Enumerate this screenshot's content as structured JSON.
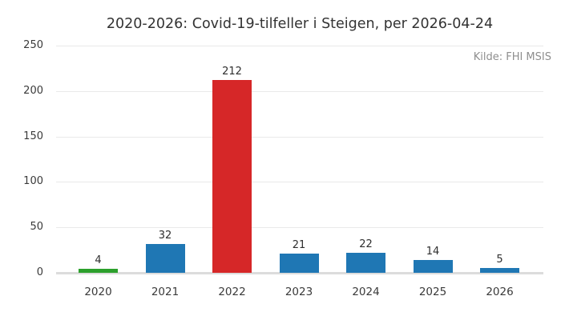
{
  "chart_data": {
    "type": "bar",
    "title": "2020-2026: Covid-19-tilfeller i Steigen, per 2026-04-24",
    "source": "Kilde: FHI MSIS",
    "categories": [
      "2020",
      "2021",
      "2022",
      "2023",
      "2024",
      "2025",
      "2026"
    ],
    "values": [
      4,
      32,
      212,
      21,
      22,
      14,
      5
    ],
    "bar_colors": [
      "#2ca02c",
      "#1f77b4",
      "#d62728",
      "#1f77b4",
      "#1f77b4",
      "#1f77b4",
      "#1f77b4"
    ],
    "value_labels": [
      "4",
      "32",
      "212",
      "21",
      "22",
      "14",
      "5"
    ],
    "xlabel": "",
    "ylabel": "",
    "yticks": [
      0,
      50,
      100,
      150,
      200,
      250
    ],
    "ylim": [
      0,
      250
    ],
    "grid": true,
    "legend_position": "none",
    "colors": {
      "default_bar": "#1f77b4",
      "highlight_bar": "#d62728",
      "first_bar": "#2ca02c",
      "grid": "#e9e9e9",
      "axis_baseline": "#dcdcdc",
      "text": "#333333",
      "source_text": "#8e8e8e",
      "background": "#ffffff"
    }
  }
}
